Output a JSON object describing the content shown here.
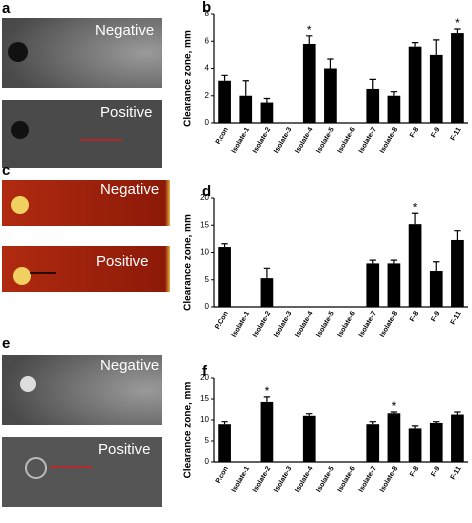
{
  "images": [
    {
      "panel": "a",
      "labels": [
        "Negative",
        "Positive"
      ]
    },
    {
      "panel": "c",
      "labels": [
        "Negative",
        "Positive"
      ]
    },
    {
      "panel": "e",
      "labels": [
        "Negative",
        "Positive"
      ]
    }
  ],
  "chart_data": [
    {
      "type": "bar",
      "panel": "b",
      "y_label": "Clearance zone, mm",
      "color": "#000000",
      "categories": [
        "P.con",
        "Isolate-1",
        "Isolate-2",
        "Isolate-3",
        "Isolate-4",
        "Isolate-5",
        "Isolate-6",
        "Isolate-7",
        "Isolate-8",
        "F-8",
        "F-9",
        "F-11"
      ],
      "values": [
        3.1,
        2.0,
        1.5,
        0,
        5.8,
        4.0,
        0,
        2.5,
        2.0,
        5.6,
        5.0,
        6.6
      ],
      "errors": [
        0.4,
        1.1,
        0.3,
        0,
        0.6,
        0.7,
        0,
        0.7,
        0.3,
        0.3,
        1.1,
        0.3
      ],
      "annotations": [
        {
          "text": "*",
          "category": "Isolate-4"
        },
        {
          "text": "*",
          "category": "F-11"
        }
      ],
      "ylim": [
        0,
        8
      ],
      "yticks": [
        0,
        2,
        4,
        6,
        8
      ]
    },
    {
      "type": "bar",
      "panel": "d",
      "y_label": "Clearance zone, mm",
      "color": "#000000",
      "categories": [
        "P.Con",
        "Isolate-1",
        "Isolate-2",
        "Isolate-3",
        "Isolate-4",
        "Isolate-5",
        "Isolate-6",
        "Isolate-7",
        "Isolate-8",
        "F-8",
        "F-9",
        "F-11"
      ],
      "values": [
        11,
        0,
        5.3,
        0,
        0,
        0,
        0,
        8,
        8,
        15.2,
        6.6,
        12.3
      ],
      "errors": [
        0.6,
        0,
        1.8,
        0,
        0,
        0,
        0,
        0.6,
        0.6,
        2.0,
        1.7,
        1.7
      ],
      "annotations": [
        {
          "text": "*",
          "category": "F-8"
        }
      ],
      "ylim": [
        0,
        20
      ],
      "yticks": [
        0,
        5,
        10,
        15,
        20
      ]
    },
    {
      "type": "bar",
      "panel": "f",
      "y_label": "Clearance zone, mm",
      "color": "#000000",
      "categories": [
        "P.con",
        "Isolate-1",
        "Isolate-2",
        "Isolate-3",
        "Isolate-4",
        "Isolate-5",
        "Isolate-6",
        "Isolate-7",
        "Isolate-8",
        "F-8",
        "F-9",
        "F-11"
      ],
      "values": [
        9,
        0,
        14.3,
        0,
        11,
        0,
        0,
        9,
        11.6,
        8,
        9.3,
        11.3
      ],
      "errors": [
        0.6,
        0,
        1.2,
        0,
        0.5,
        0,
        0,
        0.6,
        0.3,
        0.6,
        0.3,
        0.6
      ],
      "annotations": [
        {
          "text": "*",
          "category": "Isolate-2"
        },
        {
          "text": "*",
          "category": "Isolate-8"
        }
      ],
      "ylim": [
        0,
        20
      ],
      "yticks": [
        0,
        5,
        10,
        15,
        20
      ]
    }
  ]
}
